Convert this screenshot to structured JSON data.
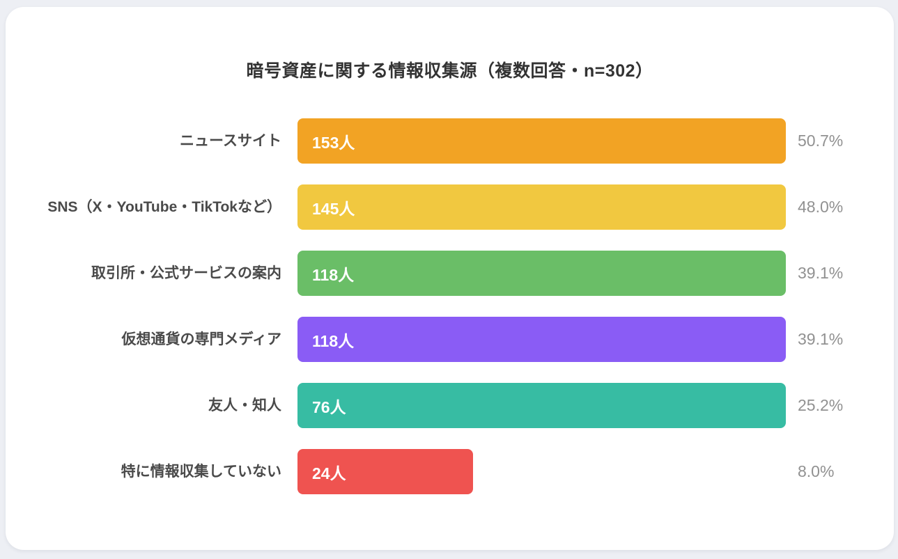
{
  "page": {
    "background_color": "#EDEFF4",
    "card_color": "#FFFFFF"
  },
  "chart_data": {
    "type": "bar",
    "orientation": "horizontal",
    "title": "暗号資産に関する情報収集源（複数回答・n=302）",
    "sample_size": 302,
    "unit": "人",
    "legend": "none",
    "grid": "off",
    "categories": [
      "ニュースサイト",
      "SNS（X・YouTube・TikTokなど）",
      "取引所・公式サービスの案内",
      "仮想通貨の専門メディア",
      "友人・知人",
      "特に情報収集していない"
    ],
    "values": [
      153,
      145,
      118,
      118,
      76,
      24
    ],
    "percentages": [
      50.7,
      48.0,
      39.1,
      39.1,
      25.2,
      8.0
    ],
    "items": [
      {
        "label": "ニュースサイト",
        "value": 153,
        "value_label": "153人",
        "pct_label": "50.7%",
        "color": "#F2A324",
        "bar_width_pct": 100
      },
      {
        "label": "SNS（X・YouTube・TikTokなど）",
        "value": 145,
        "value_label": "145人",
        "pct_label": "48.0%",
        "color": "#F1C840",
        "bar_width_pct": 100
      },
      {
        "label": "取引所・公式サービスの案内",
        "value": 118,
        "value_label": "118人",
        "pct_label": "39.1%",
        "color": "#6ABE67",
        "bar_width_pct": 100
      },
      {
        "label": "仮想通貨の専門メディア",
        "value": 118,
        "value_label": "118人",
        "pct_label": "39.1%",
        "color": "#8A5CF5",
        "bar_width_pct": 100
      },
      {
        "label": "友人・知人",
        "value": 76,
        "value_label": "76人",
        "pct_label": "25.2%",
        "color": "#37BCA3",
        "bar_width_pct": 100
      },
      {
        "label": "特に情報収集していない",
        "value": 24,
        "value_label": "24人",
        "pct_label": "8.0%",
        "color": "#EF5350",
        "bar_width_pct": 36
      }
    ]
  }
}
